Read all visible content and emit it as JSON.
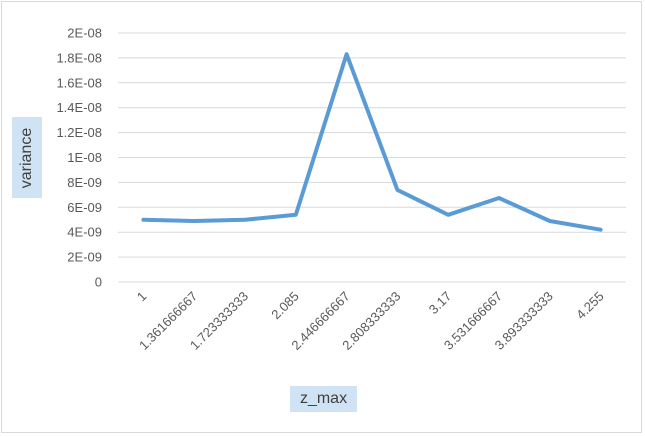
{
  "chart_data": {
    "type": "line",
    "xlabel": "z_max",
    "ylabel": "variance",
    "x": [
      "1",
      "1.361666667",
      "1.723333333",
      "2.085",
      "2.446666667",
      "2.808333333",
      "3.17",
      "3.531666667",
      "3.893333333",
      "4.255"
    ],
    "series": [
      {
        "values": [
          5e-09,
          4.9e-09,
          5e-09,
          5.4e-09,
          1.83e-08,
          7.4e-09,
          5.4e-09,
          6.75e-09,
          4.9e-09,
          4.2e-09
        ]
      }
    ],
    "ylim": [
      0,
      2e-08
    ],
    "yticks": [
      {
        "value": 0,
        "label": "0"
      },
      {
        "value": 2e-09,
        "label": "2E-09"
      },
      {
        "value": 4e-09,
        "label": "4E-09"
      },
      {
        "value": 6e-09,
        "label": "6E-09"
      },
      {
        "value": 8e-09,
        "label": "8E-09"
      },
      {
        "value": 1e-08,
        "label": "1E-08"
      },
      {
        "value": 1.2e-08,
        "label": "1.2E-08"
      },
      {
        "value": 1.4e-08,
        "label": "1.4E-08"
      },
      {
        "value": 1.6e-08,
        "label": "1.6E-08"
      },
      {
        "value": 1.8e-08,
        "label": "1.8E-08"
      },
      {
        "value": 2e-08,
        "label": "2E-08"
      }
    ],
    "grid": true,
    "legend": "none",
    "line_color": "#5b9bd5"
  }
}
